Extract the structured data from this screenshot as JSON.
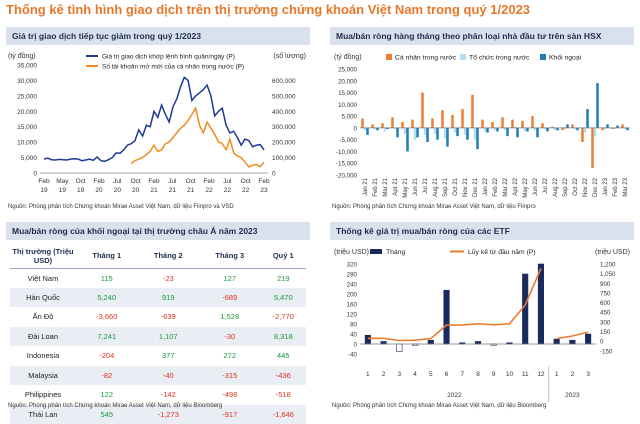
{
  "page_title": "Thống kê tình hình giao dịch trên thị trường chứng khoán Việt Nam trong quý 1/2023",
  "panels": {
    "p1": {
      "title": "Giá trị giao dịch tiếp tục giảm trong quý 1/2023",
      "source": "Nguồn: Phòng phân tích Chứng khoán Mirae Asset Việt Nam, dữ liệu Fiinpro và VSD"
    },
    "p2": {
      "title": "Mua/bán ròng hàng tháng theo phân loại nhà đầu tư trên sàn HSX",
      "source": "Nguồn: Phòng phân tích Chứng khoán Mirae Asset Việt Nam, dữ liệu Fiinpro"
    },
    "p3": {
      "title": "Mua/bán ròng của khối ngoại tại thị trường châu Á năm 2023",
      "source": "Nguồn: Phòng phân tích Chứng khoán Mirae Asset Việt Nam, dữ liệu Bloomberg"
    },
    "p4": {
      "title": "Thống kê giá trị mua/bán ròng của các ETF",
      "source": "Nguồn: Phòng phân tích Chứng khoán Mirae Asset Việt Nam, dữ liệu Bloomberg"
    }
  },
  "table": {
    "headers": [
      "Thị trường (Triệu USD)",
      "Tháng 1",
      "Tháng 2",
      "Tháng 3",
      "Quý 1"
    ],
    "rows": [
      [
        "Việt Nam",
        "115",
        "-23",
        "127",
        "219"
      ],
      [
        "Hàn Quốc",
        "5,240",
        "919",
        "-689",
        "5,470"
      ],
      [
        "Ấn Độ",
        "-3,660",
        "-639",
        "1,528",
        "-2,770"
      ],
      [
        "Đài Loan",
        "7,241",
        "1,107",
        "-30",
        "8,318"
      ],
      [
        "Indonesia",
        "-204",
        "377",
        "272",
        "445"
      ],
      [
        "Malaysia",
        "-82",
        "-40",
        "-315",
        "-436"
      ],
      [
        "Philippines",
        "122",
        "-142",
        "-498",
        "-518"
      ],
      [
        "Thái Lan",
        "545",
        "-1,273",
        "-917",
        "-1,646"
      ]
    ],
    "colors": {
      "positive": "#1A9A3A",
      "negative": "#E0301E"
    }
  },
  "chart_data": [
    {
      "type": "line",
      "title": "Giá trị giao dịch tiếp tục giảm trong quý 1/2023",
      "ylabel_left": "(tỷ đồng)",
      "ylabel_right": "(số lượng)",
      "ylim_left": [
        0,
        35000
      ],
      "ylim_right": [
        0,
        700000
      ],
      "yticks_left": [
        "0",
        "5,000",
        "10,000",
        "15,000",
        "20,000",
        "25,000",
        "30,000",
        "35,000"
      ],
      "yticks_right": [
        "0",
        "100,000",
        "200,000",
        "300,000",
        "400,000",
        "500,000",
        "600,000"
      ],
      "x_ticks": [
        "Feb 19",
        "May 19",
        "Oct 19",
        "Feb 20",
        "Jul 20",
        "Oct 20",
        "Feb 21",
        "Jul 21",
        "Oct 21",
        "Feb 22",
        "Jul 22",
        "Oct 22",
        "Feb 23"
      ],
      "series": [
        {
          "name": "Giá trị giao dịch khớp lệnh bình quân/ngày (P)",
          "color": "#1F3A93",
          "axis": "left",
          "values": [
            4500,
            4800,
            4300,
            4200,
            4400,
            4300,
            4200,
            4500,
            4600,
            4500,
            4000,
            4200,
            4500,
            4100,
            5200,
            4000,
            3800,
            4300,
            5000,
            6500,
            6400,
            7500,
            9000,
            9500,
            10500,
            14000,
            12000,
            15500,
            15000,
            20000,
            18000,
            22000,
            19000,
            16500,
            21500,
            24000,
            28000,
            31000,
            30000,
            23500,
            25000,
            26000,
            27000,
            28500,
            25000,
            18500,
            20000,
            21000,
            15500,
            13000,
            13500,
            11500,
            9000,
            11000,
            10500,
            8500,
            9000,
            9200,
            7500
          ]
        },
        {
          "name": "Số tài khoản mở mới của cá nhân trong nước (P)",
          "color": "#F28A1E",
          "axis": "right",
          "values": [
            null,
            null,
            null,
            null,
            null,
            null,
            null,
            null,
            null,
            null,
            null,
            null,
            null,
            null,
            null,
            null,
            null,
            null,
            null,
            null,
            null,
            null,
            null,
            60000,
            80000,
            90000,
            100000,
            120000,
            140000,
            180000,
            140000,
            150000,
            190000,
            200000,
            230000,
            260000,
            290000,
            310000,
            340000,
            380000,
            420000,
            310000,
            260000,
            330000,
            290000,
            250000,
            200000,
            190000,
            150000,
            220000,
            130000,
            110000,
            100000,
            70000,
            40000,
            50000,
            55000,
            40000,
            70000
          ]
        }
      ]
    },
    {
      "type": "bar",
      "title": "Mua/bán ròng hàng tháng theo phân loại nhà đầu tư trên sàn HSX",
      "ylabel": "(tỷ đồng)",
      "ylim": [
        -20000,
        25000
      ],
      "yticks": [
        "25,000",
        "20,000",
        "15,000",
        "10,000",
        "5,000",
        "0",
        "-5,000",
        "-10,000",
        "-15,000",
        "-20,000"
      ],
      "categories": [
        "Jan 21",
        "Feb 21",
        "Mar 21",
        "Apr 21",
        "May 21",
        "Jun 21",
        "Jul 21",
        "Aug 21",
        "Sep 21",
        "Oct 21",
        "Nov 21",
        "Dec 21",
        "Jan 22",
        "Feb 22",
        "Mar 22",
        "Apr 22",
        "May 22",
        "Jun 22",
        "Jul 22",
        "Aug 22",
        "Sep 22",
        "Oct 22",
        "Nov 22",
        "Dec 22",
        "Jan 23",
        "Feb 23",
        "Mar 23"
      ],
      "series": [
        {
          "name": "Cá nhân trong nước",
          "color": "#ED7D31",
          "values": [
            4000,
            1500,
            2000,
            4500,
            2500,
            3500,
            15000,
            4000,
            7500,
            5500,
            8000,
            14000,
            3500,
            2500,
            4500,
            3500,
            3000,
            5000,
            2000,
            500,
            -1000,
            1500,
            -6000,
            -17000,
            -1000,
            -500,
            1500
          ]
        },
        {
          "name": "Tổ chức trong nước",
          "color": "#B4DDF0",
          "values": [
            -1000,
            -500,
            -1500,
            -500,
            -2500,
            -5000,
            -3000,
            -2500,
            -4500,
            -2000,
            -3000,
            -5000,
            -1500,
            -1000,
            -1000,
            500,
            -1500,
            -1000,
            -500,
            -1000,
            -500,
            -500,
            -2000,
            -3500,
            -500,
            -500,
            -500
          ]
        },
        {
          "name": "Khối ngoại",
          "color": "#1E7DB8",
          "values": [
            -3000,
            -1000,
            -500,
            -4000,
            -10000,
            -4000,
            -6000,
            -5000,
            -8000,
            -3500,
            -5000,
            -9000,
            -2000,
            -1500,
            -3500,
            -4000,
            -1500,
            -4000,
            -1500,
            -1000,
            1500,
            -1000,
            8000,
            19000,
            1500,
            1000,
            -1000
          ]
        }
      ]
    },
    {
      "type": "bar",
      "title": "Thống kê giá trị mua/bán ròng của các ETF",
      "ylabel_left": "(triệu USD)",
      "ylabel_right": "(triệu USD)",
      "ylim_left": [
        -40,
        320
      ],
      "ylim_right": [
        -200,
        1200
      ],
      "yticks_left": [
        "320",
        "280",
        "240",
        "200",
        "160",
        "120",
        "80",
        "40",
        "0",
        "-40"
      ],
      "yticks_right": [
        "1,200",
        "1,050",
        "900",
        "750",
        "600",
        "450",
        "300",
        "150",
        "0",
        "-150"
      ],
      "categories": [
        "1",
        "2",
        "3",
        "4",
        "5",
        "6",
        "7",
        "8",
        "9",
        "10",
        "11",
        "12",
        "1",
        "2",
        "3"
      ],
      "year_labels": [
        "2022",
        "2023"
      ],
      "series": [
        {
          "name": "Tháng",
          "color": "#1A2A5E",
          "type": "bar",
          "axis": "left",
          "values": [
            35,
            10,
            -30,
            -5,
            15,
            215,
            5,
            10,
            -5,
            5,
            280,
            320,
            20,
            15,
            40
          ]
        },
        {
          "name": "Lũy kế từ đầu năm (P)",
          "color": "#ED7D31",
          "type": "line",
          "axis": "right",
          "values": [
            45,
            45,
            10,
            15,
            40,
            250,
            250,
            270,
            255,
            270,
            560,
            1130,
            40,
            80,
            140
          ]
        }
      ]
    }
  ]
}
